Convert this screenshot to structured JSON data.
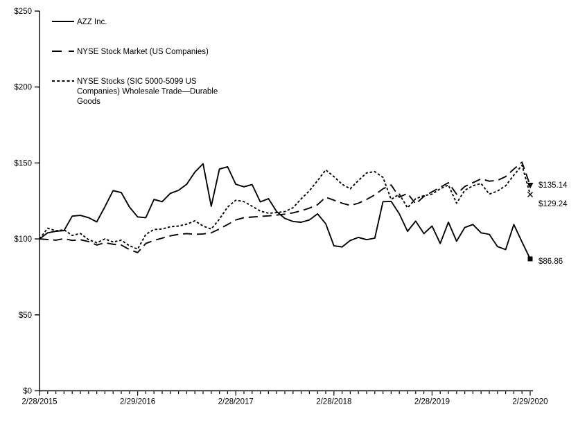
{
  "chart_data": {
    "type": "line",
    "title": "",
    "background": "#ffffff",
    "line_color": "#000000",
    "grid": false,
    "legend_position": "top-left-inside",
    "ylim": [
      0,
      250
    ],
    "y_ticks": [
      0,
      50,
      100,
      150,
      200,
      250
    ],
    "y_tick_labels": [
      "$0",
      "$50",
      "$100",
      "$150",
      "$200",
      "$250"
    ],
    "n_points": 61,
    "x_label_months": [
      0,
      12,
      24,
      36,
      48,
      60
    ],
    "x_labels": [
      "2/28/2015",
      "2/29/2016",
      "2/28/2017",
      "2/28/2018",
      "2/28/2019",
      "2/29/2020"
    ],
    "legend": [
      {
        "label_lines": [
          "AZZ Inc."
        ]
      },
      {
        "label_lines": [
          "NYSE Stock Market (US Companies)"
        ]
      },
      {
        "label_lines": [
          "NYSE Stocks (SIC 5000-5099 US",
          "Companies) Wholesale Trade—Durable",
          "Goods"
        ]
      }
    ],
    "series": [
      {
        "name": "AZZ Inc.",
        "line_style": "solid",
        "marker": "square",
        "end_label": "$86.86",
        "end_value": 86.86,
        "values": [
          100,
          104,
          105,
          105.5,
          115,
          115.5,
          114,
          111.2,
          121.2,
          131.8,
          130.5,
          121,
          114.5,
          114,
          126,
          124.5,
          130,
          132,
          136,
          144,
          149.5,
          121.5,
          146,
          147.5,
          136,
          134.3,
          135.8,
          124.4,
          126.5,
          118,
          113.5,
          111.5,
          111,
          112.5,
          116.5,
          110,
          95.5,
          94.7,
          99,
          101,
          99.5,
          100.5,
          124.5,
          124.7,
          116.5,
          105,
          111.7,
          103.5,
          108.5,
          97,
          111,
          98.5,
          107.5,
          109.5,
          104,
          103,
          95,
          93,
          109.5,
          98,
          86.86
        ]
      },
      {
        "name": "NYSE Stock Market (US Companies)",
        "line_style": "long-dash",
        "marker": "triangle",
        "end_label": "$135.14",
        "end_value": 135.14,
        "values": [
          100,
          99.6,
          99.2,
          100.2,
          99,
          99.5,
          98.2,
          96,
          97.5,
          96.5,
          96,
          93,
          91,
          97,
          99,
          100.5,
          102,
          103,
          103.5,
          103,
          103.3,
          104,
          106.5,
          109.5,
          112.5,
          114,
          114.4,
          114.8,
          115.2,
          115.7,
          116.3,
          117.2,
          118.5,
          120.3,
          122.5,
          127.5,
          125.5,
          123.5,
          122,
          123.5,
          126,
          129,
          133,
          135.5,
          127.5,
          130,
          123,
          128,
          131,
          134,
          137,
          129.5,
          134.5,
          137,
          139.5,
          138,
          138.5,
          141,
          146,
          150.5,
          135.14
        ]
      },
      {
        "name": "NYSE Stocks (SIC 5000-5099 US Companies) Wholesale Trade—Durable Goods",
        "line_style": "short-dash",
        "marker": "x",
        "end_label": "$129.24",
        "end_value": 129.24,
        "values": [
          100,
          107,
          105.4,
          106,
          102.3,
          103.6,
          99.5,
          97.5,
          100,
          98,
          99.2,
          95.5,
          93.3,
          103,
          106.2,
          106.5,
          108,
          108.5,
          109.7,
          111.9,
          108.5,
          106.5,
          113,
          121,
          125.5,
          124.5,
          121.5,
          118.3,
          116.9,
          117.3,
          118,
          120.5,
          126.4,
          131.7,
          138.4,
          145.5,
          141,
          136,
          133,
          138.5,
          143.5,
          144.3,
          140.5,
          126,
          129.5,
          120.5,
          126.5,
          128.5,
          129.5,
          133,
          135.5,
          123.5,
          132,
          135,
          136.5,
          129.5,
          131.5,
          135,
          142,
          148.5,
          129.24
        ]
      }
    ]
  }
}
